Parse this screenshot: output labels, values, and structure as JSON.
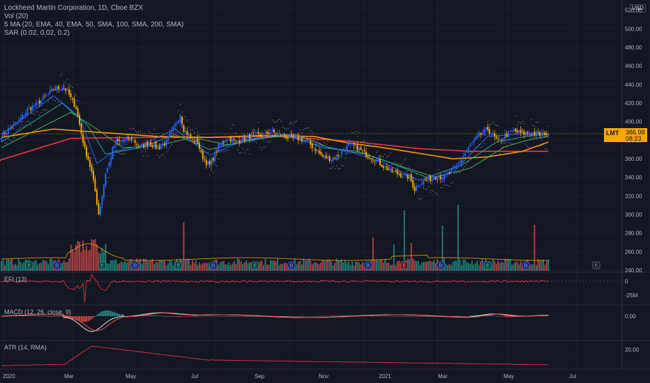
{
  "header": {
    "title": "Lockheed Martin Corporation, 1D, Cboe BZX",
    "indicator_vol": "Vol (20)",
    "indicator_ma": "5 MA (20, EMA, 40, EMA, 50, SMA, 100, SMA, 200, SMA)",
    "indicator_sar": "SAR (0.02, 0.02, 0.2)",
    "currency": "USD"
  },
  "price_tag": {
    "symbol": "LMT",
    "price": "386.98",
    "countdown": "08:23"
  },
  "panes": {
    "efi_label": "EFI (13)",
    "macd_label": "MACD (12, 26, close, 9)",
    "atr_label": "ATR (14, RMA)"
  },
  "colors": {
    "background": "#131722",
    "up": "#26a69a",
    "down": "#ef5350",
    "candle_up": "#2962ff",
    "candle_down": "#f7a600",
    "ma_fast": "#2962ff",
    "ma_mid": "#26a69a",
    "ma_slow": "#4caf50",
    "ma_100": "#ff9800",
    "ma_200": "#f23645",
    "sar": "#b2b5be",
    "efi": "#f23645",
    "atr": "#f23645"
  },
  "chart_data": [
    {
      "type": "candlestick",
      "title": "Lockheed Martin Corporation, 1D, Cboe BZX",
      "x_labels": [
        "2020",
        "Mar",
        "May",
        "Jul",
        "Sep",
        "Nov",
        "2021",
        "Mar",
        "May",
        "Jul"
      ],
      "y_ticks": [
        "520.00",
        "500.00",
        "480.00",
        "460.00",
        "440.00",
        "420.00",
        "400.00",
        "380.00",
        "360.00",
        "340.00",
        "320.00",
        "300.00",
        "280.00",
        "260.00",
        "240.00"
      ],
      "ylim": [
        240,
        522
      ],
      "last_price": 386.98,
      "close_anchors": [
        [
          0,
          385
        ],
        [
          5,
          393
        ],
        [
          10,
          400
        ],
        [
          15,
          413
        ],
        [
          20,
          418
        ],
        [
          25,
          426
        ],
        [
          30,
          435
        ],
        [
          35,
          437
        ],
        [
          38,
          433
        ],
        [
          40,
          425
        ],
        [
          43,
          415
        ],
        [
          46,
          388
        ],
        [
          48,
          370
        ],
        [
          50,
          360
        ],
        [
          52,
          345
        ],
        [
          54,
          325
        ],
        [
          56,
          301
        ],
        [
          58,
          320
        ],
        [
          60,
          345
        ],
        [
          62,
          355
        ],
        [
          64,
          370
        ],
        [
          66,
          378
        ],
        [
          68,
          378
        ],
        [
          70,
          380
        ],
        [
          75,
          382
        ],
        [
          80,
          372
        ],
        [
          85,
          378
        ],
        [
          90,
          371
        ],
        [
          95,
          378
        ],
        [
          100,
          396
        ],
        [
          103,
          408
        ],
        [
          105,
          392
        ],
        [
          110,
          380
        ],
        [
          113,
          378
        ],
        [
          115,
          365
        ],
        [
          118,
          356
        ],
        [
          120,
          353
        ],
        [
          125,
          373
        ],
        [
          130,
          383
        ],
        [
          135,
          378
        ],
        [
          140,
          381
        ],
        [
          145,
          386
        ],
        [
          150,
          385
        ],
        [
          155,
          389
        ],
        [
          160,
          386
        ],
        [
          165,
          383
        ],
        [
          170,
          382
        ],
        [
          175,
          380
        ],
        [
          180,
          372
        ],
        [
          185,
          362
        ],
        [
          190,
          360
        ],
        [
          195,
          365
        ],
        [
          200,
          375
        ],
        [
          205,
          372
        ],
        [
          210,
          365
        ],
        [
          215,
          360
        ],
        [
          220,
          352
        ],
        [
          225,
          346
        ],
        [
          230,
          343
        ],
        [
          235,
          340
        ],
        [
          238,
          327
        ],
        [
          240,
          333
        ],
        [
          245,
          337
        ],
        [
          250,
          341
        ],
        [
          255,
          340
        ],
        [
          260,
          348
        ],
        [
          265,
          360
        ],
        [
          270,
          374
        ],
        [
          275,
          385
        ],
        [
          280,
          392
        ],
        [
          283,
          385
        ],
        [
          286,
          378
        ],
        [
          290,
          385
        ],
        [
          295,
          390
        ],
        [
          300,
          387
        ],
        [
          305,
          388
        ],
        [
          310,
          386
        ],
        [
          313,
          388
        ],
        [
          315,
          387
        ]
      ],
      "ema20_anchors": [
        [
          0,
          386
        ],
        [
          30,
          428
        ],
        [
          45,
          405
        ],
        [
          55,
          355
        ],
        [
          65,
          368
        ],
        [
          80,
          374
        ],
        [
          100,
          392
        ],
        [
          120,
          364
        ],
        [
          140,
          380
        ],
        [
          160,
          387
        ],
        [
          180,
          376
        ],
        [
          200,
          368
        ],
        [
          220,
          356
        ],
        [
          240,
          337
        ],
        [
          260,
          345
        ],
        [
          280,
          384
        ],
        [
          300,
          387
        ],
        [
          315,
          387
        ]
      ],
      "ema40_anchors": [
        [
          0,
          378
        ],
        [
          35,
          420
        ],
        [
          50,
          395
        ],
        [
          60,
          365
        ],
        [
          80,
          372
        ],
        [
          100,
          386
        ],
        [
          120,
          370
        ],
        [
          145,
          381
        ],
        [
          165,
          386
        ],
        [
          185,
          372
        ],
        [
          205,
          368
        ],
        [
          225,
          355
        ],
        [
          245,
          340
        ],
        [
          265,
          353
        ],
        [
          285,
          378
        ],
        [
          305,
          385
        ],
        [
          315,
          386
        ]
      ],
      "sma50_anchors": [
        [
          0,
          372
        ],
        [
          40,
          410
        ],
        [
          55,
          392
        ],
        [
          70,
          372
        ],
        [
          90,
          374
        ],
        [
          110,
          383
        ],
        [
          130,
          375
        ],
        [
          150,
          382
        ],
        [
          170,
          386
        ],
        [
          190,
          371
        ],
        [
          210,
          365
        ],
        [
          230,
          352
        ],
        [
          250,
          340
        ],
        [
          270,
          350
        ],
        [
          290,
          373
        ],
        [
          305,
          381
        ],
        [
          315,
          384
        ]
      ],
      "sma100_anchors": [
        [
          0,
          383
        ],
        [
          30,
          392
        ],
        [
          60,
          388
        ],
        [
          90,
          384
        ],
        [
          120,
          383
        ],
        [
          150,
          385
        ],
        [
          180,
          384
        ],
        [
          200,
          377
        ],
        [
          220,
          372
        ],
        [
          240,
          366
        ],
        [
          260,
          360
        ],
        [
          280,
          362
        ],
        [
          300,
          368
        ],
        [
          315,
          378
        ]
      ],
      "sma200_anchors": [
        [
          0,
          359
        ],
        [
          40,
          382
        ],
        [
          80,
          383
        ],
        [
          120,
          383
        ],
        [
          160,
          384
        ],
        [
          200,
          379
        ],
        [
          240,
          371
        ],
        [
          270,
          368
        ],
        [
          315,
          368
        ]
      ],
      "volume_profile": "daily volume bars with spikes near Mar 2020, Jan 2021, Mar 2021 and mid-June 2021"
    },
    {
      "type": "line",
      "title": "EFI (13)",
      "y_ticks": [
        "0",
        "-25M"
      ],
      "zero_line": true
    },
    {
      "type": "histogram+line",
      "title": "MACD (12, 26, close, 9)",
      "y_ticks": [
        "0.00"
      ]
    },
    {
      "type": "line",
      "title": "ATR (14, RMA)",
      "y_ticks": [
        "20.00"
      ]
    }
  ],
  "events": {
    "earnings": [
      {
        "bar": 16,
        "letter": "E"
      },
      {
        "bar": 58,
        "letter": "E"
      },
      {
        "bar": 102,
        "letter": "E"
      },
      {
        "bar": 146,
        "letter": "E"
      },
      {
        "bar": 232,
        "letter": "E"
      },
      {
        "bar": 280,
        "letter": "E"
      }
    ],
    "dividends": [
      {
        "bar": 32,
        "letter": "D"
      },
      {
        "bar": 77,
        "letter": "D"
      },
      {
        "bar": 122,
        "letter": "D"
      },
      {
        "bar": 167,
        "letter": "D"
      },
      {
        "bar": 211,
        "letter": "D"
      },
      {
        "bar": 253,
        "letter": "D"
      },
      {
        "bar": 302,
        "letter": "D"
      }
    ],
    "upcoming_earnings": {
      "letter": "E"
    }
  }
}
